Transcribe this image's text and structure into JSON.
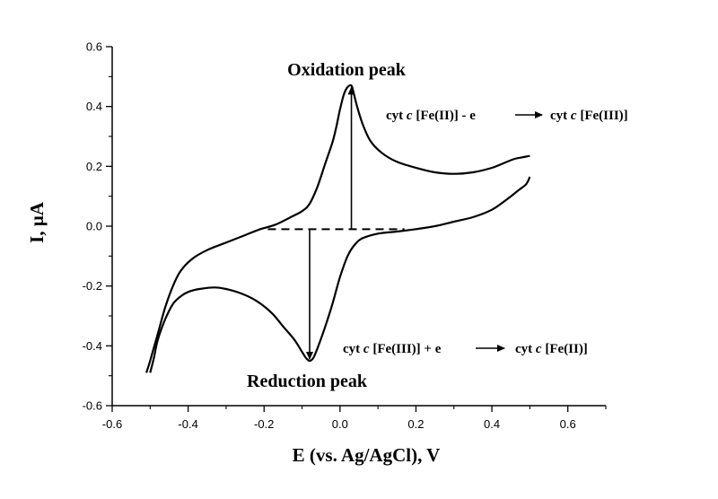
{
  "chart_data": {
    "type": "line",
    "xlabel": "E (vs. Ag/AgCl), V",
    "ylabel": "I, µA",
    "xlim": [
      -0.6,
      0.7
    ],
    "ylim": [
      -0.6,
      0.6
    ],
    "xticks": [
      -0.6,
      -0.4,
      -0.2,
      0.0,
      0.2,
      0.4,
      0.6
    ],
    "yticks": [
      -0.6,
      -0.4,
      -0.2,
      0.0,
      0.2,
      0.4,
      0.6
    ],
    "xtick_labels": [
      "-0.6",
      "-0.4",
      "-0.2",
      "0.0",
      "0.2",
      "0.4",
      "0.6"
    ],
    "ytick_labels": [
      "-0.6",
      "-0.4",
      "-0.2",
      "0.0",
      "0.2",
      "0.4",
      "0.6"
    ],
    "grid": false,
    "series": [
      {
        "points": [
          [
            -0.5,
            -0.49
          ],
          [
            -0.49,
            -0.44
          ],
          [
            -0.48,
            -0.38
          ],
          [
            -0.46,
            -0.31
          ],
          [
            -0.44,
            -0.26
          ],
          [
            -0.42,
            -0.235
          ],
          [
            -0.4,
            -0.22
          ],
          [
            -0.37,
            -0.21
          ],
          [
            -0.33,
            -0.205
          ],
          [
            -0.3,
            -0.21
          ],
          [
            -0.26,
            -0.225
          ],
          [
            -0.22,
            -0.25
          ],
          [
            -0.18,
            -0.29
          ],
          [
            -0.15,
            -0.335
          ],
          [
            -0.12,
            -0.38
          ],
          [
            -0.1,
            -0.42
          ],
          [
            -0.09,
            -0.44
          ],
          [
            -0.08,
            -0.45
          ],
          [
            -0.07,
            -0.44
          ],
          [
            -0.06,
            -0.41
          ],
          [
            -0.04,
            -0.34
          ],
          [
            -0.02,
            -0.26
          ],
          [
            0.0,
            -0.17
          ],
          [
            0.02,
            -0.1
          ],
          [
            0.04,
            -0.06
          ],
          [
            0.06,
            -0.04
          ],
          [
            0.1,
            -0.025
          ],
          [
            0.15,
            -0.018
          ],
          [
            0.2,
            -0.01
          ],
          [
            0.25,
            0.0
          ],
          [
            0.3,
            0.015
          ],
          [
            0.35,
            0.03
          ],
          [
            0.4,
            0.055
          ],
          [
            0.44,
            0.09
          ],
          [
            0.47,
            0.12
          ],
          [
            0.49,
            0.14
          ],
          [
            0.5,
            0.165
          ]
        ]
      },
      {
        "points": [
          [
            0.5,
            0.235
          ],
          [
            0.48,
            0.23
          ],
          [
            0.46,
            0.225
          ],
          [
            0.43,
            0.21
          ],
          [
            0.4,
            0.195
          ],
          [
            0.35,
            0.18
          ],
          [
            0.3,
            0.175
          ],
          [
            0.25,
            0.18
          ],
          [
            0.2,
            0.195
          ],
          [
            0.15,
            0.215
          ],
          [
            0.11,
            0.245
          ],
          [
            0.08,
            0.285
          ],
          [
            0.06,
            0.34
          ],
          [
            0.045,
            0.4
          ],
          [
            0.035,
            0.45
          ],
          [
            0.03,
            0.47
          ],
          [
            0.02,
            0.465
          ],
          [
            0.01,
            0.44
          ],
          [
            0.0,
            0.39
          ],
          [
            -0.01,
            0.33
          ],
          [
            -0.02,
            0.28
          ],
          [
            -0.04,
            0.205
          ],
          [
            -0.06,
            0.13
          ],
          [
            -0.08,
            0.075
          ],
          [
            -0.1,
            0.05
          ],
          [
            -0.13,
            0.03
          ],
          [
            -0.17,
            0.005
          ],
          [
            -0.21,
            -0.01
          ],
          [
            -0.25,
            -0.03
          ],
          [
            -0.3,
            -0.055
          ],
          [
            -0.35,
            -0.08
          ],
          [
            -0.39,
            -0.11
          ],
          [
            -0.42,
            -0.15
          ],
          [
            -0.44,
            -0.2
          ],
          [
            -0.46,
            -0.27
          ],
          [
            -0.48,
            -0.36
          ],
          [
            -0.5,
            -0.45
          ],
          [
            -0.51,
            -0.49
          ]
        ]
      }
    ],
    "baseline": {
      "x_start": -0.19,
      "x_end": 0.17,
      "y": -0.01
    },
    "peaks": {
      "oxidation": {
        "x": 0.03,
        "y_top": 0.47,
        "y_base": -0.01
      },
      "reduction": {
        "x": -0.08,
        "y_top": -0.01,
        "y_base": -0.45
      }
    },
    "annotations": {
      "oxidation_label": "Oxidation peak",
      "reduction_label": "Reduction peak",
      "oxidation_eq": {
        "part1": "cyt ",
        "italic1": "c",
        "part2": " [Fe(II)] - e",
        "part3": "cyt ",
        "italic2": "c",
        "part4": " [Fe(III)]"
      },
      "reduction_eq": {
        "part1": "cyt ",
        "italic1": "c",
        "part2": " [Fe(III)] + e",
        "part3": "cyt ",
        "italic2": "c",
        "part4": " [Fe(II)]"
      }
    }
  }
}
